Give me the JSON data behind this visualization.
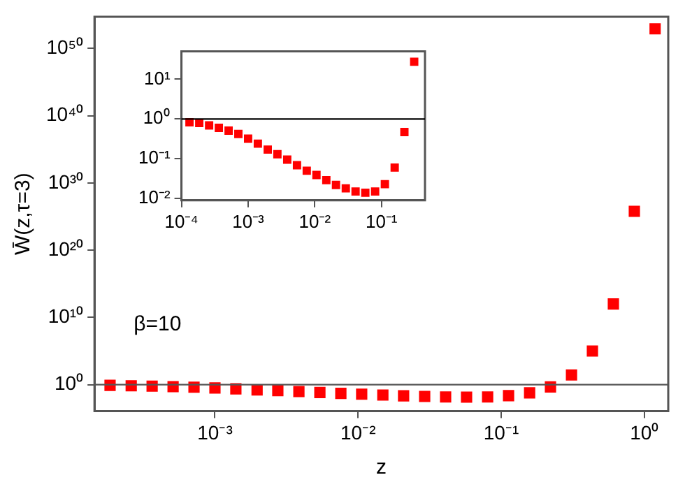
{
  "chart_data": [
    {
      "type": "scatter",
      "xlabel": "z",
      "ylabel": "W̄(z,τ=3)",
      "log": "xy",
      "marker": "square",
      "grid": false,
      "legend": false,
      "annotations": [
        "β=10"
      ],
      "xlim": [
        0.000144,
        1.47
      ],
      "ylim": [
        0.00012,
        5e+54
      ],
      "xticks": [
        {
          "value": 0.001,
          "label": "10⁻³"
        },
        {
          "value": 0.01,
          "label": "10⁻²"
        },
        {
          "value": 0.1,
          "label": "10⁻¹"
        },
        {
          "value": 1,
          "label": "10⁰"
        }
      ],
      "yticks": [
        {
          "value": 1,
          "label": "10⁰"
        },
        {
          "value": 10000000000.0,
          "label": "10¹⁰"
        },
        {
          "value": 1e+20,
          "label": "10²⁰"
        },
        {
          "value": 1e+30,
          "label": "10³⁰"
        },
        {
          "value": 1e+40,
          "label": "10⁴⁰"
        },
        {
          "value": 1e+50,
          "label": "10⁵⁰"
        }
      ],
      "ref_lines": [
        {
          "axis": "y",
          "value": 1,
          "color": "#555555"
        }
      ],
      "series": [
        {
          "color": "#ff0000",
          "x": [
            0.000185,
            0.00026,
            0.000364,
            0.00051,
            0.000714,
            0.001,
            0.0014,
            0.00197,
            0.00275,
            0.00386,
            0.00541,
            0.00758,
            0.0106,
            0.0149,
            0.0208,
            0.0292,
            0.0409,
            0.0573,
            0.0804,
            0.1126,
            0.158,
            0.221,
            0.31,
            0.434,
            0.608,
            0.852,
            1.19
          ],
          "values": [
            0.79,
            0.69,
            0.6,
            0.51,
            0.42,
            0.32,
            0.24,
            0.17,
            0.13,
            0.095,
            0.069,
            0.05,
            0.039,
            0.029,
            0.022,
            0.018,
            0.015,
            0.014,
            0.015,
            0.023,
            0.06,
            0.47,
            27.5,
            100000.0,
            1000000000000.0,
            6e+25,
            8e+52
          ]
        }
      ]
    },
    {
      "type": "scatter",
      "log": "xy",
      "marker": "square",
      "grid": false,
      "legend": false,
      "xlim": [
        0.0001,
        0.45
      ],
      "ylim": [
        0.009,
        50
      ],
      "xticks": [
        {
          "value": 0.0001,
          "label": "10⁻⁴"
        },
        {
          "value": 0.001,
          "label": "10⁻³"
        },
        {
          "value": 0.01,
          "label": "10⁻²"
        },
        {
          "value": 0.1,
          "label": "10⁻¹"
        }
      ],
      "yticks": [
        {
          "value": 0.01,
          "label": "10⁻²"
        },
        {
          "value": 0.1,
          "label": "10⁻¹"
        },
        {
          "value": 1,
          "label": "10⁰"
        },
        {
          "value": 10,
          "label": "10¹"
        }
      ],
      "ref_lines": [
        {
          "axis": "y",
          "value": 1,
          "color": "#000000"
        }
      ],
      "series": [
        {
          "color": "#ff0000",
          "x": [
            0.000132,
            0.000185,
            0.00026,
            0.000364,
            0.00051,
            0.000714,
            0.001,
            0.0014,
            0.00197,
            0.00275,
            0.00386,
            0.00541,
            0.00758,
            0.0106,
            0.0149,
            0.0208,
            0.0292,
            0.0409,
            0.0573,
            0.0804,
            0.1126,
            0.158,
            0.221,
            0.31
          ],
          "values": [
            0.83,
            0.79,
            0.69,
            0.6,
            0.51,
            0.42,
            0.32,
            0.24,
            0.17,
            0.13,
            0.095,
            0.069,
            0.05,
            0.039,
            0.029,
            0.022,
            0.018,
            0.015,
            0.014,
            0.015,
            0.023,
            0.06,
            0.47,
            27.5
          ]
        }
      ]
    }
  ]
}
